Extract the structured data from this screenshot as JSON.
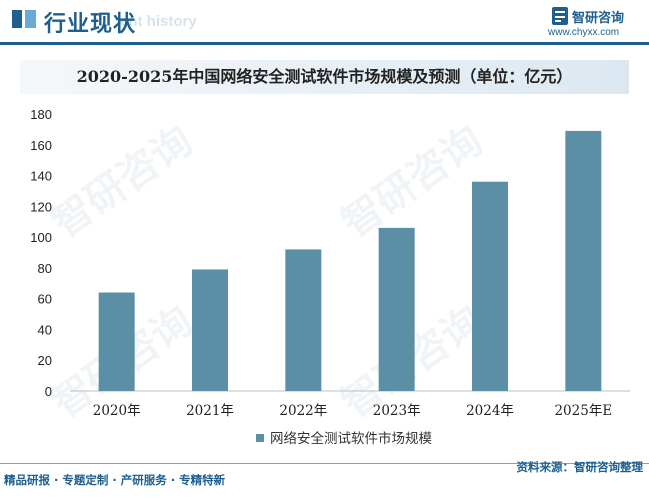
{
  "header": {
    "title": "行业现状",
    "subtitle": "ent history",
    "brand": "智研咨询",
    "url": "www.chyxx.com",
    "accent": "#1e5f8f"
  },
  "footer": {
    "services": "精品研报 · 专题定制 · 产研服务 · 专精特新",
    "source": "资料来源：智研咨询整理"
  },
  "watermark": "智研咨询",
  "chart_data": {
    "type": "bar",
    "title": "2020-2025年中国网络安全测试软件市场规模及预测（单位：亿元）",
    "categories": [
      "2020年",
      "2021年",
      "2022年",
      "2023年",
      "2024年",
      "2025年E"
    ],
    "series": [
      {
        "name": "网络安全测试软件市场规模",
        "values": [
          64,
          79,
          92,
          106,
          136,
          169
        ],
        "color": "#5b8fa6"
      }
    ],
    "ylim": [
      0,
      180
    ],
    "yticks": [
      0,
      20,
      40,
      60,
      80,
      100,
      120,
      140,
      160,
      180
    ],
    "legend": "bottom-center",
    "grid": false
  }
}
